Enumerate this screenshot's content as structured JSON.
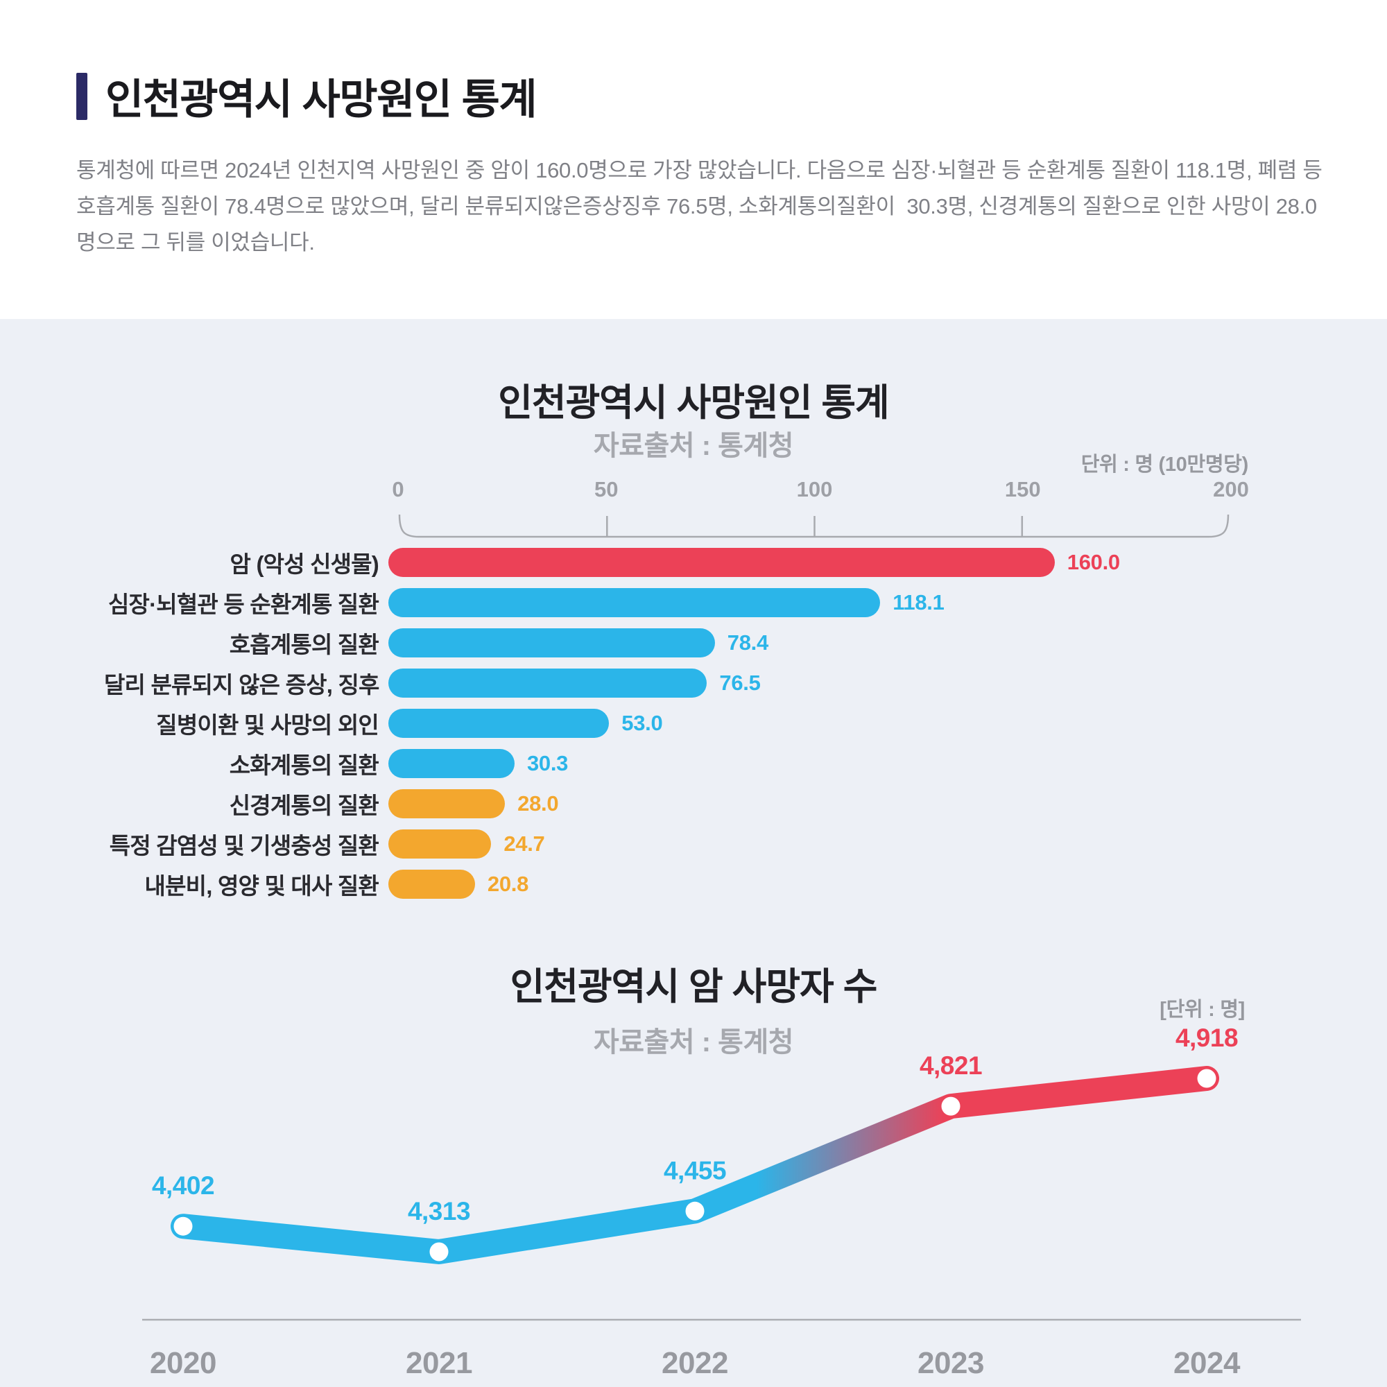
{
  "colors": {
    "red": "#EC4157",
    "blue": "#2BB5E9",
    "orange": "#F3A72E",
    "accent_navy": "#2B2A66",
    "section_bg": "#EDF0F6",
    "heading": "#1A1A1E",
    "body_gray": "#7F8086",
    "muted_gray": "#A6A8AE",
    "axis_gray": "#A8AAAF",
    "tick_text": "#9EA0A6"
  },
  "header": {
    "title": "인천광역시 사망원인 통계",
    "description": "통계청에 따르면 2024년 인천지역 사망원인 중 암이 160.0명으로 가장 많았습니다. 다음으로 심장·뇌혈관 등 순환계통 질환이 118.1명, 폐렴 등 호흡계통 질환이 78.4명으로 많았으며, 달리 분류되지않은증상징후 76.5명, 소화계통의질환이  30.3명, 신경계통의 질환으로 인한 사망이 28.0명으로 그 뒤를 이었습니다."
  },
  "chart_data": [
    {
      "type": "bar",
      "orientation": "horizontal",
      "title": "인천광역시 사망원인 통계",
      "subtitle": "자료출처 : 통계청",
      "unit_label": "단위 : 명 (10만명당)",
      "xlim": [
        0,
        200
      ],
      "x_ticks": [
        0,
        50,
        100,
        150,
        200
      ],
      "categories": [
        "암 (악성 신생물)",
        "심장·뇌혈관 등 순환계통 질환",
        "호흡계통의 질환",
        "달리 분류되지 않은 증상, 징후",
        "질병이환 및 사망의 외인",
        "소화계통의 질환",
        "신경계통의 질환",
        "특정 감염성 및 기생충성 질환",
        "내분비, 영양 및 대사 질환"
      ],
      "values": [
        160.0,
        118.1,
        78.4,
        76.5,
        53.0,
        30.3,
        28.0,
        24.7,
        20.8
      ],
      "bar_colors": [
        "red",
        "blue",
        "blue",
        "blue",
        "blue",
        "blue",
        "orange",
        "orange",
        "orange"
      ]
    },
    {
      "type": "line",
      "title": "인천광역시 암 사망자 수",
      "subtitle": "자료출처 : 통계청",
      "unit_label": "[단위 : 명]",
      "x": [
        "2020",
        "2021",
        "2022",
        "2023",
        "2024"
      ],
      "values": [
        4402,
        4313,
        4455,
        4821,
        4918
      ],
      "point_labels": [
        "4,402",
        "4,313",
        "4,455",
        "4,821",
        "4,918"
      ],
      "label_colors": [
        "blue",
        "blue",
        "blue",
        "red",
        "red"
      ],
      "line_style": "thick rounded line, blue for 2020-2022, gradient to red between 2022 and 2023, red for 2023-2024, white dot markers",
      "grid": false,
      "legend": false
    }
  ]
}
